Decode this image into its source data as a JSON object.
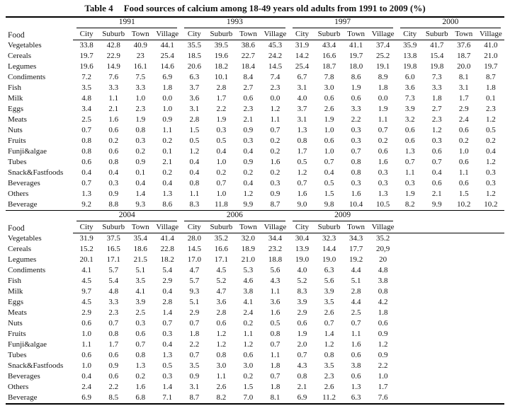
{
  "title": {
    "label": "Table 4",
    "caption": "Food sources of calcium among 18-49 years old adults from 1991 to 2009 (%)"
  },
  "food_header": "Food",
  "subcolumns": [
    "City",
    "Suburb",
    "Town",
    "Village"
  ],
  "sections": [
    {
      "years": [
        "1991",
        "1993",
        "1997",
        "2000"
      ],
      "rows": [
        {
          "food": "Vegetables",
          "values": [
            "33.8",
            "42.8",
            "40.9",
            "44.1",
            "35.5",
            "39.5",
            "38.6",
            "45.3",
            "31.9",
            "43.4",
            "41.1",
            "37.4",
            "35.9",
            "41.7",
            "37.6",
            "41.0"
          ]
        },
        {
          "food": "Cereals",
          "values": [
            "19.7",
            "22.9",
            "23",
            "25.4",
            "18.5",
            "19.6",
            "22.7",
            "24.2",
            "14.2",
            "16.6",
            "19.7",
            "25.2",
            "13.8",
            "15.4",
            "18.7",
            "21.0"
          ]
        },
        {
          "food": "Legumes",
          "values": [
            "19.6",
            "14.9",
            "16.1",
            "14.6",
            "20.6",
            "18.2",
            "18.4",
            "14.5",
            "25.4",
            "18.7",
            "18.0",
            "19.1",
            "19.8",
            "19.8",
            "20.0",
            "19.7"
          ]
        },
        {
          "food": "Condiments",
          "values": [
            "7.2",
            "7.6",
            "7.5",
            "6.9",
            "6.3",
            "10.1",
            "8.4",
            "7.4",
            "6.7",
            "7.8",
            "8.6",
            "8.9",
            "6.0",
            "7.3",
            "8.1",
            "8.7"
          ]
        },
        {
          "food": "Fish",
          "values": [
            "3.5",
            "3.3",
            "3.3",
            "1.8",
            "3.7",
            "2.8",
            "2.7",
            "2.3",
            "3.1",
            "3.0",
            "1.9",
            "1.8",
            "3.6",
            "3.3",
            "3.1",
            "1.8"
          ]
        },
        {
          "food": "Milk",
          "values": [
            "4.8",
            "1.1",
            "1.0",
            "0.0",
            "3.6",
            "1.7",
            "0.6",
            "0.0",
            "4.0",
            "0.6",
            "0.6",
            "0.0",
            "7.3",
            "1.8",
            "1.7",
            "0.1"
          ]
        },
        {
          "food": "Eggs",
          "values": [
            "3.4",
            "2.1",
            "2.3",
            "1.0",
            "3.1",
            "2.2",
            "2.3",
            "1.2",
            "3.7",
            "2.6",
            "3.3",
            "1.9",
            "3.9",
            "2.7",
            "2.9",
            "2.3"
          ]
        },
        {
          "food": "Meats",
          "values": [
            "2.5",
            "1.6",
            "1.9",
            "0.9",
            "2.8",
            "1.9",
            "2.1",
            "1.1",
            "3.1",
            "1.9",
            "2.2",
            "1.1",
            "3.2",
            "2.3",
            "2.4",
            "1.2"
          ]
        },
        {
          "food": "Nuts",
          "values": [
            "0.7",
            "0.6",
            "0.8",
            "1.1",
            "1.5",
            "0.3",
            "0.9",
            "0.7",
            "1.3",
            "1.0",
            "0.3",
            "0.7",
            "0.6",
            "1.2",
            "0.6",
            "0.5"
          ]
        },
        {
          "food": "Fruits",
          "values": [
            "0.8",
            "0.2",
            "0.3",
            "0.2",
            "0.5",
            "0.5",
            "0.3",
            "0.2",
            "0.8",
            "0.6",
            "0.3",
            "0.2",
            "0.6",
            "0.3",
            "0.2",
            "0.2"
          ]
        },
        {
          "food": "Funji&algae",
          "values": [
            "0.8",
            "0.6",
            "0.2",
            "0.1",
            "1.2",
            "0.4",
            "0.4",
            "0.2",
            "1.7",
            "1.0",
            "0.7",
            "0.6",
            "1.3",
            "0.6",
            "1.0",
            "0.4"
          ]
        },
        {
          "food": "Tubes",
          "values": [
            "0.6",
            "0.8",
            "0.9",
            "2.1",
            "0.4",
            "1.0",
            "0.9",
            "1.6",
            "0.5",
            "0.7",
            "0.8",
            "1.6",
            "0.7",
            "0.7",
            "0.6",
            "1.2"
          ]
        },
        {
          "food": "Snack&Fastfoods",
          "values": [
            "0.4",
            "0.4",
            "0.1",
            "0.2",
            "0.4",
            "0.2",
            "0.2",
            "0.2",
            "1.2",
            "0.4",
            "0.8",
            "0.3",
            "1.1",
            "0.4",
            "1.1",
            "0.3"
          ]
        },
        {
          "food": "Beverages",
          "values": [
            "0.7",
            "0.3",
            "0.4",
            "0.4",
            "0.8",
            "0.7",
            "0.4",
            "0.3",
            "0.7",
            "0.5",
            "0.3",
            "0.3",
            "0.3",
            "0.6",
            "0.6",
            "0.3"
          ]
        },
        {
          "food": "Others",
          "values": [
            "1.3",
            "0.9",
            "1.4",
            "1.3",
            "1.1",
            "1.0",
            "1.2",
            "0.9",
            "1.6",
            "1.5",
            "1.6",
            "1.3",
            "1.9",
            "2.1",
            "1.5",
            "1.2"
          ]
        },
        {
          "food": "Beverage",
          "values": [
            "9.2",
            "8.8",
            "9.3",
            "8.6",
            "8.3",
            "11.8",
            "9.9",
            "8.7",
            "9.0",
            "9.8",
            "10.4",
            "10.5",
            "8.2",
            "9.9",
            "10.2",
            "10.2"
          ]
        }
      ]
    },
    {
      "years": [
        "2004",
        "2006",
        "2009"
      ],
      "rows": [
        {
          "food": "Vegetables",
          "values": [
            "31.9",
            "37.5",
            "35.4",
            "41.4",
            "28.0",
            "35.2",
            "32.0",
            "34.4",
            "30.4",
            "32.3",
            "34.3",
            "35.2"
          ]
        },
        {
          "food": "Cereals",
          "values": [
            "15.2",
            "16.5",
            "18.6",
            "22.8",
            "14.5",
            "16.6",
            "18.9",
            "23.2",
            "13.9",
            "14.4",
            "17.7",
            "20,9"
          ]
        },
        {
          "food": "Legumes",
          "values": [
            "20.1",
            "17.1",
            "21.5",
            "18.2",
            "17.0",
            "17.1",
            "21.0",
            "18.8",
            "19.0",
            "19.0",
            "19.2",
            "20"
          ]
        },
        {
          "food": "Condiments",
          "values": [
            "4.1",
            "5.7",
            "5.1",
            "5.4",
            "4.7",
            "4.5",
            "5.3",
            "5.6",
            "4.0",
            "6.3",
            "4.4",
            "4.8"
          ]
        },
        {
          "food": "Fish",
          "values": [
            "4.5",
            "5.4",
            "3.5",
            "2.9",
            "5.7",
            "5.2",
            "4.6",
            "4.3",
            "5.2",
            "5.6",
            "5.1",
            "3.8"
          ]
        },
        {
          "food": "Milk",
          "values": [
            "9.7",
            "4.8",
            "4.1",
            "0.4",
            "9.3",
            "4.7",
            "3.8",
            "1.1",
            "8.3",
            "3.9",
            "2.8",
            "0.8"
          ]
        },
        {
          "food": "Eggs",
          "values": [
            "4.5",
            "3.3",
            "3.9",
            "2.8",
            "5.1",
            "3.6",
            "4.1",
            "3.6",
            "3.9",
            "3.5",
            "4.4",
            "4.2"
          ]
        },
        {
          "food": "Meats",
          "values": [
            "2.9",
            "2.3",
            "2.5",
            "1.4",
            "2.9",
            "2.8",
            "2.4",
            "1.6",
            "2.9",
            "2.6",
            "2.5",
            "1.8"
          ]
        },
        {
          "food": "Nuts",
          "values": [
            "0.6",
            "0.7",
            "0.3",
            "0.7",
            "0.7",
            "0.6",
            "0.2",
            "0.5",
            "0.6",
            "0.7",
            "0.7",
            "0.6"
          ]
        },
        {
          "food": "Fruits",
          "values": [
            "1.0",
            "0.8",
            "0.6",
            "0.3",
            "1.8",
            "1.2",
            "1.1",
            "0.8",
            "1.9",
            "1.4",
            "1.1",
            "0.9"
          ]
        },
        {
          "food": "Funji&algae",
          "values": [
            "1.1",
            "1.7",
            "0.7",
            "0.4",
            "2.2",
            "1.2",
            "1.2",
            "0.7",
            "2.0",
            "1.2",
            "1.6",
            "1.2"
          ]
        },
        {
          "food": "Tubes",
          "values": [
            "0.6",
            "0.6",
            "0.8",
            "1.3",
            "0.7",
            "0.8",
            "0.6",
            "1.1",
            "0.7",
            "0.8",
            "0.6",
            "0.9"
          ]
        },
        {
          "food": "Snack&Fastfoods",
          "values": [
            "1.0",
            "0.9",
            "1.3",
            "0.5",
            "3.5",
            "3.0",
            "3.0",
            "1.8",
            "4.3",
            "3.5",
            "3.8",
            "2.2"
          ]
        },
        {
          "food": "Beverages",
          "values": [
            "0.4",
            "0.6",
            "0.2",
            "0.3",
            "0.9",
            "1.1",
            "0.2",
            "0.7",
            "0.8",
            "2.3",
            "0.6",
            "1.0"
          ]
        },
        {
          "food": "Others",
          "values": [
            "2.4",
            "2.2",
            "1.6",
            "1.4",
            "3.1",
            "2.6",
            "1.5",
            "1.8",
            "2.1",
            "2.6",
            "1.3",
            "1.7"
          ]
        },
        {
          "food": "Beverage",
          "values": [
            "6.9",
            "8.5",
            "6.8",
            "7.1",
            "8.7",
            "8.2",
            "7.0",
            "8.1",
            "6.9",
            "11.2",
            "6.3",
            "7.6"
          ]
        }
      ]
    }
  ]
}
